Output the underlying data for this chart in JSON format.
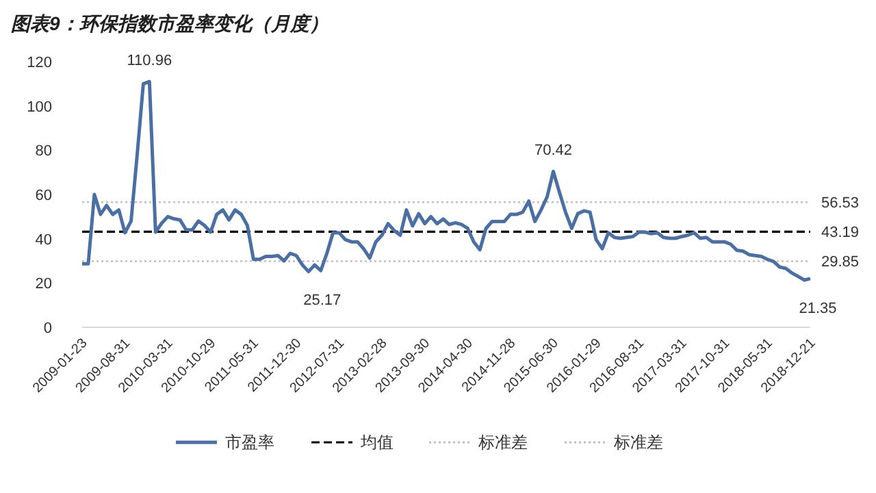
{
  "chart_data": {
    "type": "line",
    "title": "图表9：环保指数市盈率变化（月度）",
    "x": [
      "2009-01",
      "2009-02",
      "2009-03",
      "2009-04",
      "2009-05",
      "2009-06",
      "2009-07",
      "2009-08",
      "2009-09",
      "2009-10",
      "2009-11",
      "2009-12",
      "2010-01",
      "2010-02",
      "2010-03",
      "2010-04",
      "2010-05",
      "2010-06",
      "2010-07",
      "2010-08",
      "2010-09",
      "2010-10",
      "2010-11",
      "2010-12",
      "2011-01",
      "2011-02",
      "2011-03",
      "2011-04",
      "2011-05",
      "2011-06",
      "2011-07",
      "2011-08",
      "2011-09",
      "2011-10",
      "2011-11",
      "2011-12",
      "2012-01",
      "2012-02",
      "2012-03",
      "2012-04",
      "2012-05",
      "2012-06",
      "2012-07",
      "2012-08",
      "2012-09",
      "2012-10",
      "2012-11",
      "2012-12",
      "2013-01",
      "2013-02",
      "2013-03",
      "2013-04",
      "2013-05",
      "2013-06",
      "2013-07",
      "2013-08",
      "2013-09",
      "2013-10",
      "2013-11",
      "2013-12",
      "2014-01",
      "2014-02",
      "2014-03",
      "2014-04",
      "2014-05",
      "2014-06",
      "2014-07",
      "2014-08",
      "2014-09",
      "2014-10",
      "2014-11",
      "2014-12",
      "2015-01",
      "2015-02",
      "2015-03",
      "2015-04",
      "2015-05",
      "2015-06",
      "2015-07",
      "2015-08",
      "2015-09",
      "2015-10",
      "2015-11",
      "2015-12",
      "2016-01",
      "2016-02",
      "2016-03",
      "2016-04",
      "2016-05",
      "2016-06",
      "2016-07",
      "2016-08",
      "2016-09",
      "2016-10",
      "2016-11",
      "2016-12",
      "2017-01",
      "2017-02",
      "2017-03",
      "2017-04",
      "2017-05",
      "2017-06",
      "2017-07",
      "2017-08",
      "2017-09",
      "2017-10",
      "2017-11",
      "2017-12",
      "2018-01",
      "2018-02",
      "2018-03",
      "2018-04",
      "2018-05",
      "2018-06",
      "2018-07",
      "2018-08",
      "2018-09",
      "2018-10",
      "2018-11",
      "2018-12"
    ],
    "series": [
      {
        "name": "市盈率",
        "color": "#4a6fa5",
        "values": [
          28.7,
          28.7,
          60,
          51,
          55,
          51,
          53,
          42.7,
          48,
          78,
          110,
          110.96,
          43,
          47,
          50,
          49,
          48.5,
          44,
          44,
          48,
          46,
          43,
          51,
          53,
          48.5,
          53,
          51,
          46,
          30.7,
          30.7,
          32,
          32,
          32.4,
          30,
          33.4,
          32.4,
          28.2,
          25.17,
          28.2,
          25.6,
          33.4,
          42.7,
          42.7,
          39.6,
          38.6,
          38.6,
          35.5,
          31.3,
          38.6,
          41.6,
          46.8,
          43.7,
          41.6,
          53,
          45.8,
          51.3,
          46.8,
          50,
          46.8,
          48.9,
          46.4,
          47.2,
          46.4,
          44.7,
          38.6,
          35,
          44.7,
          47.8,
          47.8,
          47.8,
          51,
          51,
          52,
          57,
          47.8,
          53,
          59,
          70.42,
          61,
          52,
          44.7,
          51.3,
          52.6,
          52,
          39.6,
          35.5,
          42.7,
          40.6,
          40.2,
          40.6,
          41,
          43,
          43,
          42.3,
          42.7,
          40.6,
          40.2,
          40.2,
          41,
          41.6,
          42.7,
          40.2,
          40.6,
          38.6,
          38.6,
          38.6,
          37.5,
          34.8,
          34.4,
          32.8,
          32.4,
          32,
          30.7,
          29.7,
          27.2,
          26.6,
          24.5,
          23,
          21.35,
          22
        ]
      }
    ],
    "xlim": [
      "2009-01",
      "2018-12"
    ],
    "xticks": [
      {
        "value": "2009-01",
        "label": "2009-01-23"
      },
      {
        "value": "2009-08",
        "label": "2009-08-31"
      },
      {
        "value": "2010-03",
        "label": "2010-03-31"
      },
      {
        "value": "2010-10",
        "label": "2010-10-29"
      },
      {
        "value": "2011-05",
        "label": "2011-05-31"
      },
      {
        "value": "2011-12",
        "label": "2011-12-30"
      },
      {
        "value": "2012-07",
        "label": "2012-07-31"
      },
      {
        "value": "2013-02",
        "label": "2013-02-28"
      },
      {
        "value": "2013-09",
        "label": "2013-09-30"
      },
      {
        "value": "2014-04",
        "label": "2014-04-30"
      },
      {
        "value": "2014-11",
        "label": "2014-11-28"
      },
      {
        "value": "2015-06",
        "label": "2015-06-30"
      },
      {
        "value": "2016-01",
        "label": "2016-01-29"
      },
      {
        "value": "2016-08",
        "label": "2016-08-31"
      },
      {
        "value": "2017-03",
        "label": "2017-03-31"
      },
      {
        "value": "2017-10",
        "label": "2017-10-31"
      },
      {
        "value": "2018-05",
        "label": "2018-05-31"
      },
      {
        "value": "2018-12",
        "label": "2018-12-21"
      }
    ],
    "ylim": [
      0,
      120
    ],
    "yticks": [
      0,
      20,
      40,
      60,
      80,
      100,
      120
    ],
    "ref_lines": [
      {
        "axis": "y",
        "value": 43.19,
        "label": "均值",
        "color": "#000000",
        "line_style": "dashed"
      },
      {
        "axis": "y",
        "value": 56.53,
        "label": "标准差",
        "color": "#bfbfbf",
        "line_style": "dotted"
      },
      {
        "axis": "y",
        "value": 29.85,
        "label": "标准差",
        "color": "#bfbfbf",
        "line_style": "dotted"
      }
    ],
    "annotations": [
      {
        "text": "110.96",
        "x": "2009-12",
        "y": 110.96
      },
      {
        "text": "70.42",
        "x": "2015-06",
        "y": 70.42
      },
      {
        "text": "25.17",
        "x": "2012-02",
        "y": 25.17
      },
      {
        "text": "21.35",
        "x": "2018-11",
        "y": 21.35
      },
      "56.53",
      "43.19",
      "29.85"
    ],
    "legend": "bottom",
    "grid": false,
    "marker": "none",
    "line_style": "solid"
  }
}
